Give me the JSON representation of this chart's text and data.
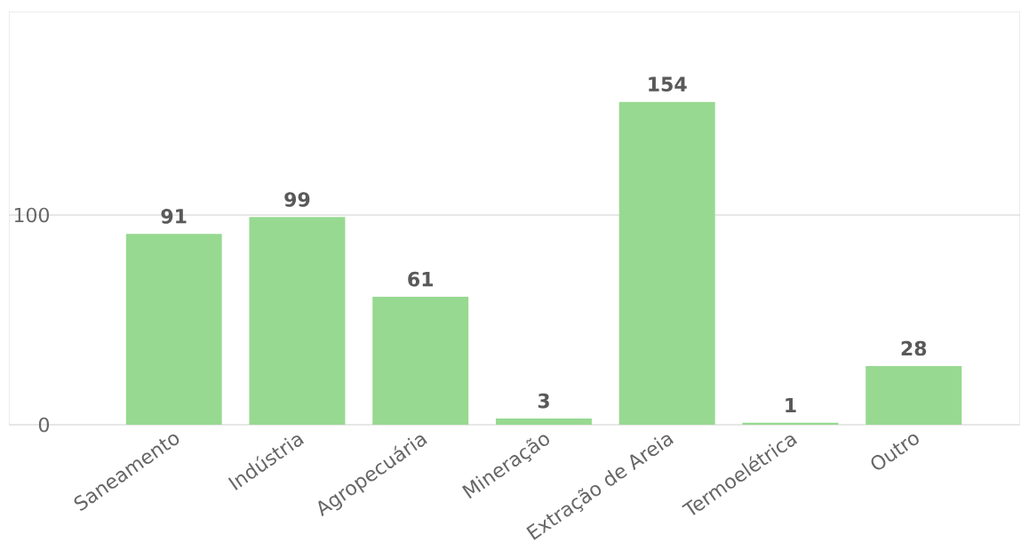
{
  "chart_data": {
    "type": "bar",
    "categories": [
      "Saneamento",
      "Indústria",
      "Agropecuária",
      "Mineração",
      "Extração de Areia",
      "Termoelétrica",
      "Outro"
    ],
    "values": [
      91,
      99,
      61,
      3,
      154,
      1,
      28
    ],
    "color": "#97d991",
    "ylim": [
      0,
      197
    ],
    "yticks": [
      0,
      100
    ],
    "grid": "y",
    "data_labels": true
  }
}
